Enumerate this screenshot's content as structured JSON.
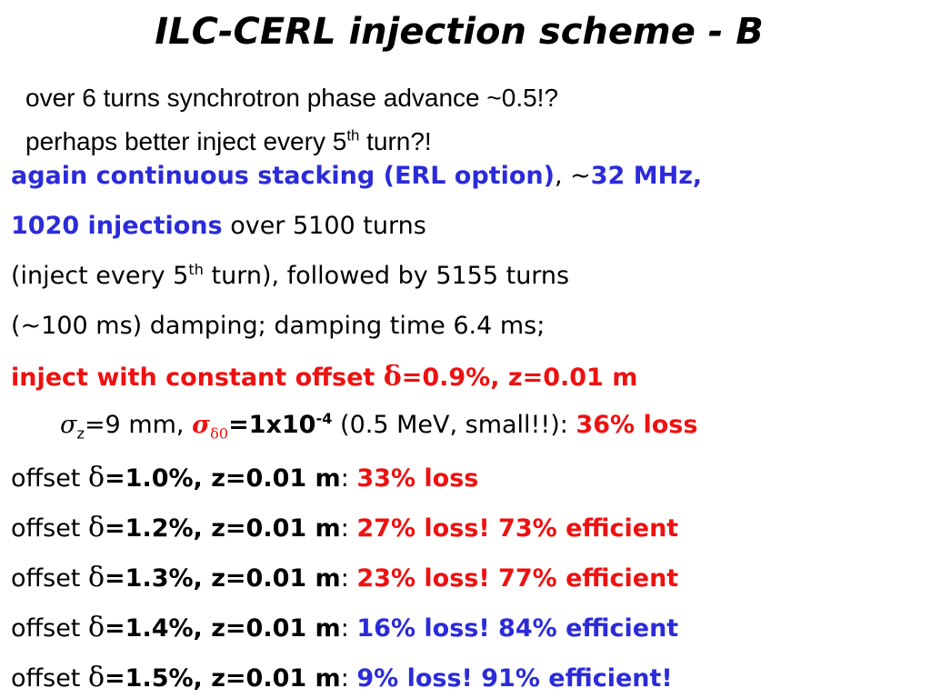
{
  "title": "ILC-CERL injection scheme - B",
  "notes": {
    "line1": "over 6 turns synchrotron phase advance ~0.5!?",
    "line2_pre": "perhaps better inject every 5",
    "line2_sup": "th",
    "line2_post": " turn?!"
  },
  "body": {
    "l1_blue1": "again continuous stacking (ERL option)",
    "l1_comma": ", ~",
    "l1_blue2": "32 MHz,",
    "l2_blue": "1020 injections",
    "l2_rest": " over 5100 turns",
    "l3_pre": "(inject every 5",
    "l3_sup": "th",
    "l3_post": " turn), followed by 5155 turns",
    "l4": "(~100 ms) damping; damping time 6.4 ms;",
    "l5_pre": "inject with constant offset ",
    "l5_delta": "δ",
    "l5_post": "=0.9%, z=0.01 m",
    "l6_sigma": "σ",
    "l6_sub_z": "z",
    "l6_a": "=9 mm, ",
    "l6_sigma2": "σ",
    "l6_sub_d0": "δ0",
    "l6_b": "=1x10",
    "l6_sup": "-4",
    "l6_c": " (0.5 MeV, small!!):  ",
    "l6_loss": "36% loss"
  },
  "offset_prefix": "offset ",
  "offset_delta": "δ",
  "offsets": [
    {
      "value": "=1.0%, z=0.01 m",
      "colon": ": ",
      "result": "33% loss",
      "color": "#ee1111"
    },
    {
      "value": "=1.2%, z=0.01 m",
      "colon": ": ",
      "result": "27% loss! 73% efficient",
      "color": "#ee1111"
    },
    {
      "value": "=1.3%, z=0.01 m",
      "colon": ": ",
      "result": "23% loss! 77% efficient",
      "color": "#ee1111"
    },
    {
      "value": "=1.4%, z=0.01 m",
      "colon": ": ",
      "result": "16% loss! 84% efficient",
      "color": "#2b2bd9"
    },
    {
      "value": "=1.5%, z=0.01 m",
      "colon": ": ",
      "result": "9% loss! 91% efficient!",
      "color": "#2b2bd9"
    }
  ]
}
